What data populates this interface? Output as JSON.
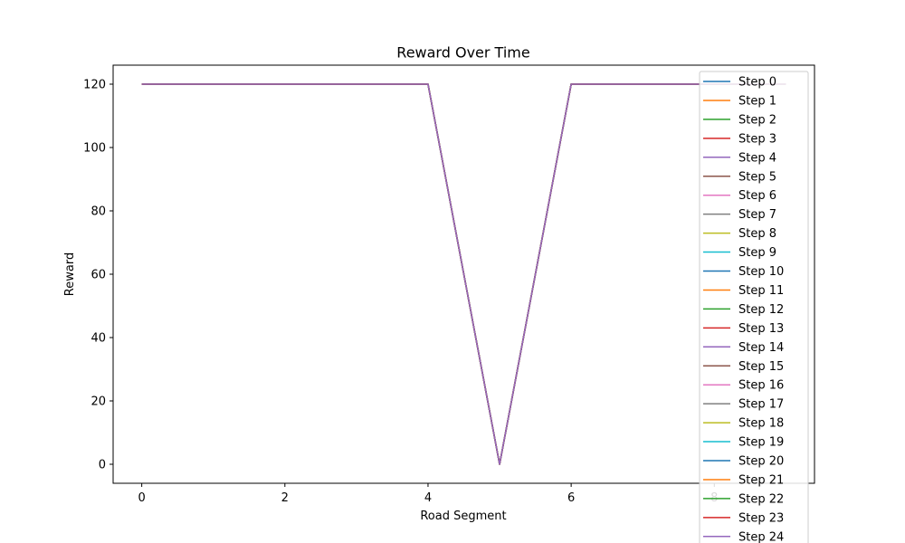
{
  "chart_data": {
    "type": "line",
    "title": "Reward Over Time",
    "xlabel": "Road Segment",
    "ylabel": "Reward",
    "xlim": [
      -0.4,
      9.4
    ],
    "ylim": [
      -6,
      126
    ],
    "xticks": [
      0,
      2,
      4,
      6,
      8
    ],
    "xtick_labels": [
      "0",
      "2",
      "4",
      "6",
      "8"
    ],
    "yticks": [
      0,
      20,
      40,
      60,
      80,
      100,
      120
    ],
    "ytick_labels": [
      "0",
      "20",
      "40",
      "60",
      "80",
      "100",
      "120"
    ],
    "grid": false,
    "legend_position": "upper right",
    "x": [
      0,
      1,
      2,
      3,
      4,
      5,
      6,
      7,
      8,
      9
    ],
    "series": [
      {
        "name": "Step 0",
        "color": "#1f77b4",
        "values": [
          120,
          120,
          120,
          120,
          120,
          0,
          120,
          120,
          120,
          120
        ]
      },
      {
        "name": "Step 1",
        "color": "#ff7f0e",
        "values": [
          120,
          120,
          120,
          120,
          120,
          0,
          120,
          120,
          120,
          120
        ]
      },
      {
        "name": "Step 2",
        "color": "#2ca02c",
        "values": [
          120,
          120,
          120,
          120,
          120,
          0,
          120,
          120,
          120,
          120
        ]
      },
      {
        "name": "Step 3",
        "color": "#d62728",
        "values": [
          120,
          120,
          120,
          120,
          120,
          0,
          120,
          120,
          120,
          120
        ]
      },
      {
        "name": "Step 4",
        "color": "#9467bd",
        "values": [
          120,
          120,
          120,
          120,
          120,
          0,
          120,
          120,
          120,
          120
        ]
      },
      {
        "name": "Step 5",
        "color": "#8c564b",
        "values": [
          120,
          120,
          120,
          120,
          120,
          0,
          120,
          120,
          120,
          120
        ]
      },
      {
        "name": "Step 6",
        "color": "#e377c2",
        "values": [
          120,
          120,
          120,
          120,
          120,
          0,
          120,
          120,
          120,
          120
        ]
      },
      {
        "name": "Step 7",
        "color": "#7f7f7f",
        "values": [
          120,
          120,
          120,
          120,
          120,
          0,
          120,
          120,
          120,
          120
        ]
      },
      {
        "name": "Step 8",
        "color": "#bcbd22",
        "values": [
          120,
          120,
          120,
          120,
          120,
          0,
          120,
          120,
          120,
          120
        ]
      },
      {
        "name": "Step 9",
        "color": "#17becf",
        "values": [
          120,
          120,
          120,
          120,
          120,
          0,
          120,
          120,
          120,
          120
        ]
      },
      {
        "name": "Step 10",
        "color": "#1f77b4",
        "values": [
          120,
          120,
          120,
          120,
          120,
          0,
          120,
          120,
          120,
          120
        ]
      },
      {
        "name": "Step 11",
        "color": "#ff7f0e",
        "values": [
          120,
          120,
          120,
          120,
          120,
          0,
          120,
          120,
          120,
          120
        ]
      },
      {
        "name": "Step 12",
        "color": "#2ca02c",
        "values": [
          120,
          120,
          120,
          120,
          120,
          0,
          120,
          120,
          120,
          120
        ]
      },
      {
        "name": "Step 13",
        "color": "#d62728",
        "values": [
          120,
          120,
          120,
          120,
          120,
          0,
          120,
          120,
          120,
          120
        ]
      },
      {
        "name": "Step 14",
        "color": "#9467bd",
        "values": [
          120,
          120,
          120,
          120,
          120,
          0,
          120,
          120,
          120,
          120
        ]
      },
      {
        "name": "Step 15",
        "color": "#8c564b",
        "values": [
          120,
          120,
          120,
          120,
          120,
          0,
          120,
          120,
          120,
          120
        ]
      },
      {
        "name": "Step 16",
        "color": "#e377c2",
        "values": [
          120,
          120,
          120,
          120,
          120,
          0,
          120,
          120,
          120,
          120
        ]
      },
      {
        "name": "Step 17",
        "color": "#7f7f7f",
        "values": [
          120,
          120,
          120,
          120,
          120,
          0,
          120,
          120,
          120,
          120
        ]
      },
      {
        "name": "Step 18",
        "color": "#bcbd22",
        "values": [
          120,
          120,
          120,
          120,
          120,
          0,
          120,
          120,
          120,
          120
        ]
      },
      {
        "name": "Step 19",
        "color": "#17becf",
        "values": [
          120,
          120,
          120,
          120,
          120,
          0,
          120,
          120,
          120,
          120
        ]
      },
      {
        "name": "Step 20",
        "color": "#1f77b4",
        "values": [
          120,
          120,
          120,
          120,
          120,
          0,
          120,
          120,
          120,
          120
        ]
      },
      {
        "name": "Step 21",
        "color": "#ff7f0e",
        "values": [
          120,
          120,
          120,
          120,
          120,
          0,
          120,
          120,
          120,
          120
        ]
      },
      {
        "name": "Step 22",
        "color": "#2ca02c",
        "values": [
          120,
          120,
          120,
          120,
          120,
          0,
          120,
          120,
          120,
          120
        ]
      },
      {
        "name": "Step 23",
        "color": "#d62728",
        "values": [
          120,
          120,
          120,
          120,
          120,
          0,
          120,
          120,
          120,
          120
        ]
      },
      {
        "name": "Step 24",
        "color": "#9467bd",
        "values": [
          120,
          120,
          120,
          120,
          120,
          0,
          120,
          120,
          120,
          120
        ]
      }
    ]
  }
}
